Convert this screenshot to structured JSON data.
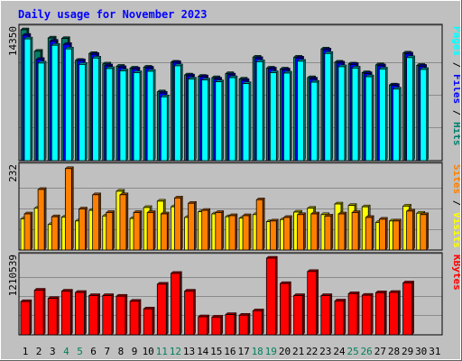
{
  "chart_data": {
    "type": "bar",
    "title": "Daily usage for November 2023",
    "days": [
      "1",
      "2",
      "3",
      "4",
      "5",
      "6",
      "7",
      "8",
      "9",
      "10",
      "11",
      "12",
      "13",
      "14",
      "15",
      "16",
      "17",
      "18",
      "19",
      "20",
      "21",
      "22",
      "23",
      "24",
      "25",
      "26",
      "27",
      "28",
      "29",
      "30",
      "31"
    ],
    "weekend_days": [
      "4",
      "5",
      "11",
      "12",
      "18",
      "19",
      "25",
      "26"
    ],
    "colors": {
      "hits": "#00806b",
      "files": "#0000ff",
      "pages": "#00ffff",
      "visits": "#ffff00",
      "sites": "#ff8000",
      "kbytes": "#ff0000",
      "weekend_day_label": "#00805c"
    },
    "panels": [
      {
        "id": "hits_files_pages",
        "ymax_label": "14350",
        "ylim": [
          0,
          14350
        ],
        "labels": [
          {
            "text": "Pages",
            "color": "#00ffff"
          },
          {
            "text": " / ",
            "color": "#000000"
          },
          {
            "text": "Files",
            "color": "#0000ff"
          },
          {
            "text": " / ",
            "color": "#000000"
          },
          {
            "text": "Hits",
            "color": "#00806b"
          }
        ],
        "series": [
          {
            "name": "Hits",
            "color": "#00806b",
            "values": [
              14350,
              12000,
              13450,
              13400,
              11000,
              11750,
              10600,
              10350,
              10150,
              10250,
              7550,
              10800,
              9400,
              9250,
              9100,
              9550,
              8950,
              11350,
              10150,
              10050,
              11350,
              9100,
              12250,
              10800,
              10600,
              9650,
              10500,
              8300,
              11800,
              10450,
              0
            ]
          },
          {
            "name": "Files",
            "color": "#0000ff",
            "values": [
              13750,
              11100,
              13100,
              12750,
              10950,
              11650,
              10400,
              10200,
              10050,
              10150,
              7400,
              10750,
              9300,
              9200,
              8950,
              9400,
              8800,
              11200,
              10050,
              9950,
              11250,
              8950,
              12150,
              10700,
              10550,
              9550,
              10400,
              8250,
              11700,
              10350,
              0
            ]
          },
          {
            "name": "Pages",
            "color": "#00ffff",
            "values": [
              13350,
              10700,
              12650,
              12250,
              10550,
              11250,
              10100,
              9850,
              9650,
              9800,
              7000,
              10400,
              8950,
              8850,
              8650,
              9100,
              8450,
              10850,
              9650,
              9600,
              10900,
              8600,
              11750,
              10300,
              10150,
              9200,
              10050,
              7850,
              11300,
              10000,
              0
            ]
          }
        ]
      },
      {
        "id": "visits_sites",
        "ymax_label": "232",
        "ylim": [
          0,
          232
        ],
        "labels": [
          {
            "text": "Sites",
            "color": "#ff8000"
          },
          {
            "text": " / ",
            "color": "#000000"
          },
          {
            "text": "Visits",
            "color": "#ffff00"
          }
        ],
        "series": [
          {
            "name": "Visits",
            "color": "#ffff00",
            "values": [
              88,
              118,
              72,
              93,
              82,
              112,
              96,
              166,
              89,
              120,
              138,
              122,
              92,
              108,
              102,
              94,
              90,
              100,
              80,
              86,
              107,
              118,
              100,
              130,
              126,
              122,
              78,
              82,
              124,
              104,
              0
            ]
          },
          {
            "name": "Sites",
            "color": "#ff8000",
            "values": [
              102,
              171,
              94,
              230,
              116,
              156,
              106,
              156,
              106,
              106,
              102,
              147,
              132,
              112,
              106,
              97,
              97,
              142,
              82,
              92,
              100,
              102,
              96,
              102,
              106,
              92,
              87,
              82,
              110,
              100,
              0
            ]
          }
        ]
      },
      {
        "id": "kbytes",
        "ymax_label": "1210539",
        "ylim": [
          0,
          1210539
        ],
        "labels": [
          {
            "text": "KBytes",
            "color": "#ff0000"
          }
        ],
        "series": [
          {
            "name": "KBytes",
            "color": "#ff0000",
            "values": [
              525000,
              705000,
              575000,
              690000,
              670000,
              620000,
              620000,
              610000,
              530000,
              410000,
              800000,
              970000,
              690000,
              285000,
              280000,
              320000,
              310000,
              380000,
              1210539,
              810000,
              620000,
              1000000,
              620000,
              535000,
              650000,
              625000,
              665000,
              670000,
              820000,
              0,
              0
            ]
          }
        ]
      }
    ]
  }
}
